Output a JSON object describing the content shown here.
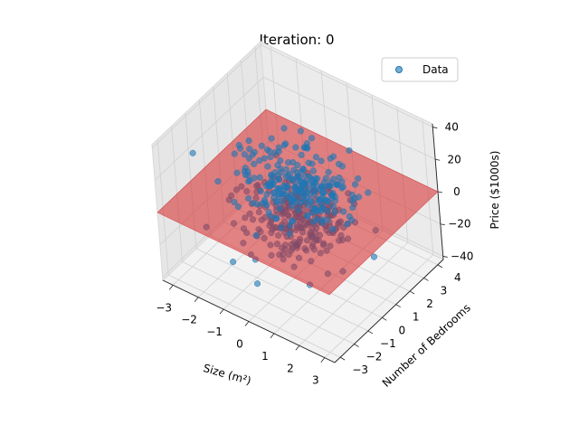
{
  "chart_data": {
    "type": "scatter3d",
    "title": "Iteration: 0",
    "xlabel": "Size (m²)",
    "ylabel": "Number of Bedrooms",
    "zlabel": "Price ($1000s)",
    "legend": {
      "entries": [
        "Data"
      ],
      "placement": "top-right"
    },
    "grid": true,
    "xlim": [
      -3.4,
      3.4
    ],
    "ylim": [
      -3.4,
      4.4
    ],
    "zlim": [
      -42,
      42
    ],
    "xticks": [
      -3,
      -2,
      -1,
      0,
      1,
      2,
      3
    ],
    "yticks": [
      -3,
      -2,
      -1,
      0,
      1,
      2,
      3,
      4
    ],
    "zticks": [
      -40,
      -20,
      0,
      20,
      40
    ],
    "xtick_labels": [
      "−3",
      "−2",
      "−1",
      "0",
      "1",
      "2",
      "3"
    ],
    "ytick_labels": [
      "−3",
      "−2",
      "−1",
      "0",
      "1",
      "2",
      "3",
      "4"
    ],
    "ztick_labels": [
      "−40",
      "−20",
      "0",
      "20",
      "40"
    ],
    "series": [
      {
        "name": "Data",
        "color": "#1f77b4",
        "n_points": 500,
        "distribution": "normal, centered near (0, 0.5, 0), z spread ≈ 13"
      }
    ],
    "plane": {
      "z": 0,
      "color": "#d62728",
      "alpha": 0.55
    }
  }
}
